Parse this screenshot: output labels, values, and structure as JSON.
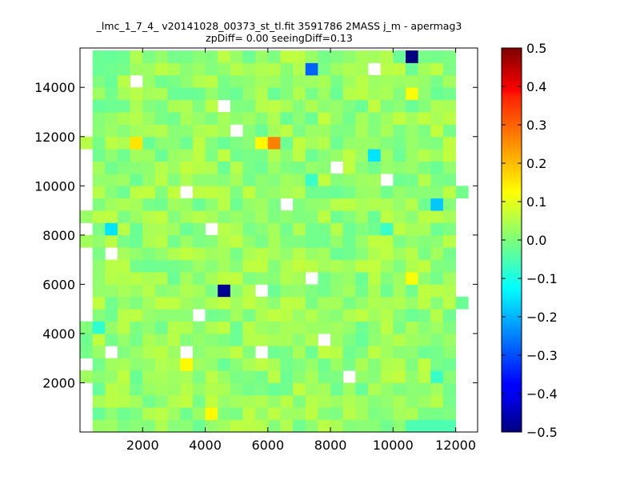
{
  "chart_data": {
    "type": "heatmap",
    "title": "_lmc_1_7_4_ v20141028_00373_st_tl.fit 3591786 2MASS j_m - apermag3",
    "subtitle": "zpDiff= 0.00 seeingDiff=0.13",
    "xlim": [
      0,
      12700
    ],
    "ylim": [
      0,
      15600
    ],
    "xticks": [
      "2000",
      "4000",
      "6000",
      "8000",
      "10000",
      "12000"
    ],
    "yticks": [
      "2000",
      "4000",
      "6000",
      "8000",
      "10000",
      "12000",
      "14000"
    ],
    "xtick_values": [
      2000,
      4000,
      6000,
      8000,
      10000,
      12000
    ],
    "ytick_values": [
      2000,
      4000,
      6000,
      8000,
      10000,
      12000,
      14000
    ],
    "colorbar": {
      "range": [
        -0.5,
        0.5
      ],
      "colormap": "jet",
      "ticks": [
        "0.5",
        "0.4",
        "0.3",
        "0.2",
        "0.1",
        "0.0",
        "−0.1",
        "−0.2",
        "−0.3",
        "−0.4",
        "−0.5"
      ],
      "tick_values": [
        0.5,
        0.4,
        0.3,
        0.2,
        0.1,
        0.0,
        -0.1,
        -0.2,
        -0.3,
        -0.4,
        -0.5
      ]
    },
    "grid": false,
    "cells_note": "approximate per-bin mean values",
    "x_bins": [
      400,
      800,
      1200,
      1600,
      2000,
      2400,
      2800,
      3200,
      3600,
      4000,
      4400,
      4800,
      5200,
      5600,
      6000,
      6400,
      6800,
      7200,
      7600,
      8000,
      8400,
      8800,
      9200,
      9600,
      10000,
      10400,
      10800,
      11200,
      11600,
      12000,
      12400
    ],
    "y_bins": [
      250,
      750,
      1250,
      1750,
      2250,
      2750,
      3250,
      3750,
      4250,
      4750,
      5250,
      5750,
      6250,
      6750,
      7250,
      7750,
      8250,
      8750,
      9250,
      9750,
      10250,
      10750,
      11250,
      11750,
      12250,
      12750,
      13250,
      13750,
      14250,
      14750,
      15250
    ],
    "special_cells": [
      {
        "x": 10600,
        "y": 15400,
        "value": -0.5
      },
      {
        "x": 7400,
        "y": 14500,
        "value": -0.28
      },
      {
        "x": 6200,
        "y": 11950,
        "value": 0.25
      },
      {
        "x": 5800,
        "y": 11950,
        "value": 0.13
      },
      {
        "x": 1800,
        "y": 11950,
        "value": 0.15
      },
      {
        "x": 9400,
        "y": 11450,
        "value": -0.15
      },
      {
        "x": 7400,
        "y": 10450,
        "value": -0.07
      },
      {
        "x": 11400,
        "y": 9450,
        "value": -0.18
      },
      {
        "x": 1000,
        "y": 8050,
        "value": -0.15
      },
      {
        "x": 4600,
        "y": 5700,
        "value": -0.48
      },
      {
        "x": 600,
        "y": 4100,
        "value": -0.08
      },
      {
        "x": 10400,
        "y": 13950,
        "value": 0.12
      },
      {
        "x": 10400,
        "y": 350,
        "value": -0.05
      },
      {
        "x": 10800,
        "y": 350,
        "value": -0.05
      },
      {
        "x": 11200,
        "y": 350,
        "value": -0.05
      },
      {
        "x": 11600,
        "y": 350,
        "value": -0.05
      },
      {
        "x": 11200,
        "y": 2200,
        "value": -0.07
      },
      {
        "x": 10600,
        "y": 6000,
        "value": 0.12
      },
      {
        "x": 3400,
        "y": 2500,
        "value": 0.13
      },
      {
        "x": 4200,
        "y": 750,
        "value": 0.13
      },
      {
        "x": 2000,
        "y": 5500,
        "value": 0.05
      },
      {
        "x": 9800,
        "y": 8050,
        "value": -0.07
      }
    ]
  }
}
